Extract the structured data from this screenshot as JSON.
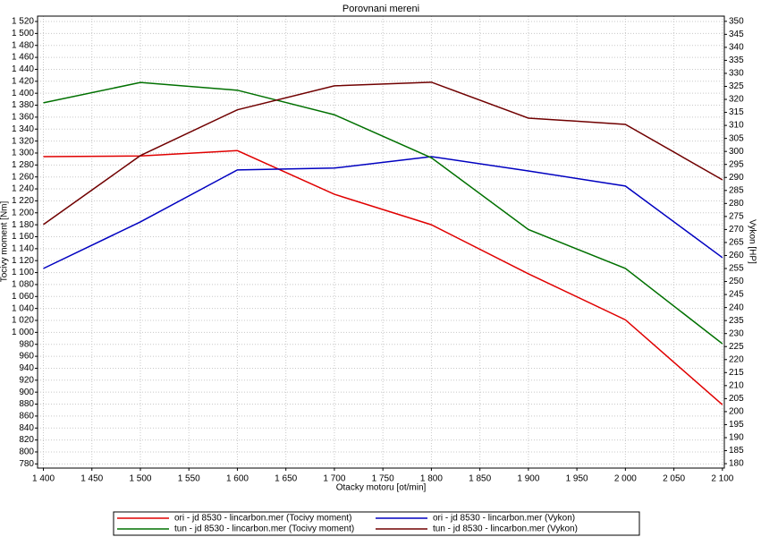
{
  "chart_data": {
    "type": "line",
    "title": "Porovnani mereni",
    "x_label": "Otacky motoru [ot/min]",
    "y_label": "Tocivy moment [Nm]",
    "y2_label": "Vykon [HP]",
    "x": [
      1400,
      1500,
      1600,
      1700,
      1800,
      1900,
      2000,
      2100
    ],
    "xlim": [
      1394,
      2102
    ],
    "xticks": [
      {
        "value": 1400,
        "label": "1 400"
      },
      {
        "value": 1450,
        "label": "1 450"
      },
      {
        "value": 1500,
        "label": "1 500"
      },
      {
        "value": 1550,
        "label": "1 550"
      },
      {
        "value": 1600,
        "label": "1 600"
      },
      {
        "value": 1650,
        "label": "1 650"
      },
      {
        "value": 1700,
        "label": "1 700"
      },
      {
        "value": 1750,
        "label": "1 750"
      },
      {
        "value": 1800,
        "label": "1 800"
      },
      {
        "value": 1850,
        "label": "1 850"
      },
      {
        "value": 1900,
        "label": "1 900"
      },
      {
        "value": 1950,
        "label": "1 950"
      },
      {
        "value": 2000,
        "label": "2 000"
      },
      {
        "value": 2050,
        "label": "2 050"
      },
      {
        "value": 2100,
        "label": "2 100"
      }
    ],
    "ylim": [
      773,
      1529
    ],
    "yticks": [
      780,
      800,
      820,
      840,
      860,
      880,
      900,
      920,
      940,
      960,
      980,
      {
        "value": 1000,
        "label": "1 000"
      },
      {
        "value": 1020,
        "label": "1 020"
      },
      {
        "value": 1040,
        "label": "1 040"
      },
      {
        "value": 1060,
        "label": "1 060"
      },
      {
        "value": 1080,
        "label": "1 080"
      },
      {
        "value": 1100,
        "label": "1 100"
      },
      {
        "value": 1120,
        "label": "1 120"
      },
      {
        "value": 1140,
        "label": "1 140"
      },
      {
        "value": 1160,
        "label": "1 160"
      },
      {
        "value": 1180,
        "label": "1 180"
      },
      {
        "value": 1200,
        "label": "1 200"
      },
      {
        "value": 1220,
        "label": "1 220"
      },
      {
        "value": 1240,
        "label": "1 240"
      },
      {
        "value": 1260,
        "label": "1 260"
      },
      {
        "value": 1280,
        "label": "1 280"
      },
      {
        "value": 1300,
        "label": "1 300"
      },
      {
        "value": 1320,
        "label": "1 320"
      },
      {
        "value": 1340,
        "label": "1 340"
      },
      {
        "value": 1360,
        "label": "1 360"
      },
      {
        "value": 1380,
        "label": "1 380"
      },
      {
        "value": 1400,
        "label": "1 400"
      },
      {
        "value": 1420,
        "label": "1 420"
      },
      {
        "value": 1440,
        "label": "1 440"
      },
      {
        "value": 1460,
        "label": "1 460"
      },
      {
        "value": 1480,
        "label": "1 480"
      },
      {
        "value": 1500,
        "label": "1 500"
      },
      {
        "value": 1520,
        "label": "1 520"
      }
    ],
    "y2lim": [
      178.3,
      352
    ],
    "y2ticks": [
      180,
      185,
      190,
      195,
      200,
      205,
      210,
      215,
      220,
      225,
      230,
      235,
      240,
      245,
      250,
      255,
      260,
      265,
      270,
      275,
      280,
      285,
      290,
      295,
      300,
      305,
      310,
      315,
      320,
      325,
      330,
      335,
      340,
      345,
      350
    ],
    "grid": true,
    "series": [
      {
        "name": "ori - jd 8530 - lincarbon.mer  (Tocivy moment)",
        "color": "#e00000",
        "values": [
          1294,
          1295,
          1304,
          1231,
          1180,
          1098,
          1021,
          879
        ]
      },
      {
        "name": "ori - jd 8530 - lincarbon.mer  (Vykon)",
        "color": "#0000c0",
        "axis": "y2",
        "values": [
          255,
          272.9,
          292.9,
          293.6,
          298,
          292.5,
          286.7,
          259.2
        ]
      },
      {
        "name": "tun - jd 8530 - lincarbon.mer  (Tocivy moment)",
        "color": "#007000",
        "values": [
          1384,
          1418,
          1405,
          1364,
          1292,
          1172,
          1107,
          981
        ]
      },
      {
        "name": "tun - jd 8530 - lincarbon.mer  (Vykon)",
        "color": "#700000",
        "axis": "y2",
        "values": [
          271.9,
          298.4,
          316,
          325.2,
          326.6,
          312.8,
          310.4,
          289.1
        ]
      }
    ]
  }
}
